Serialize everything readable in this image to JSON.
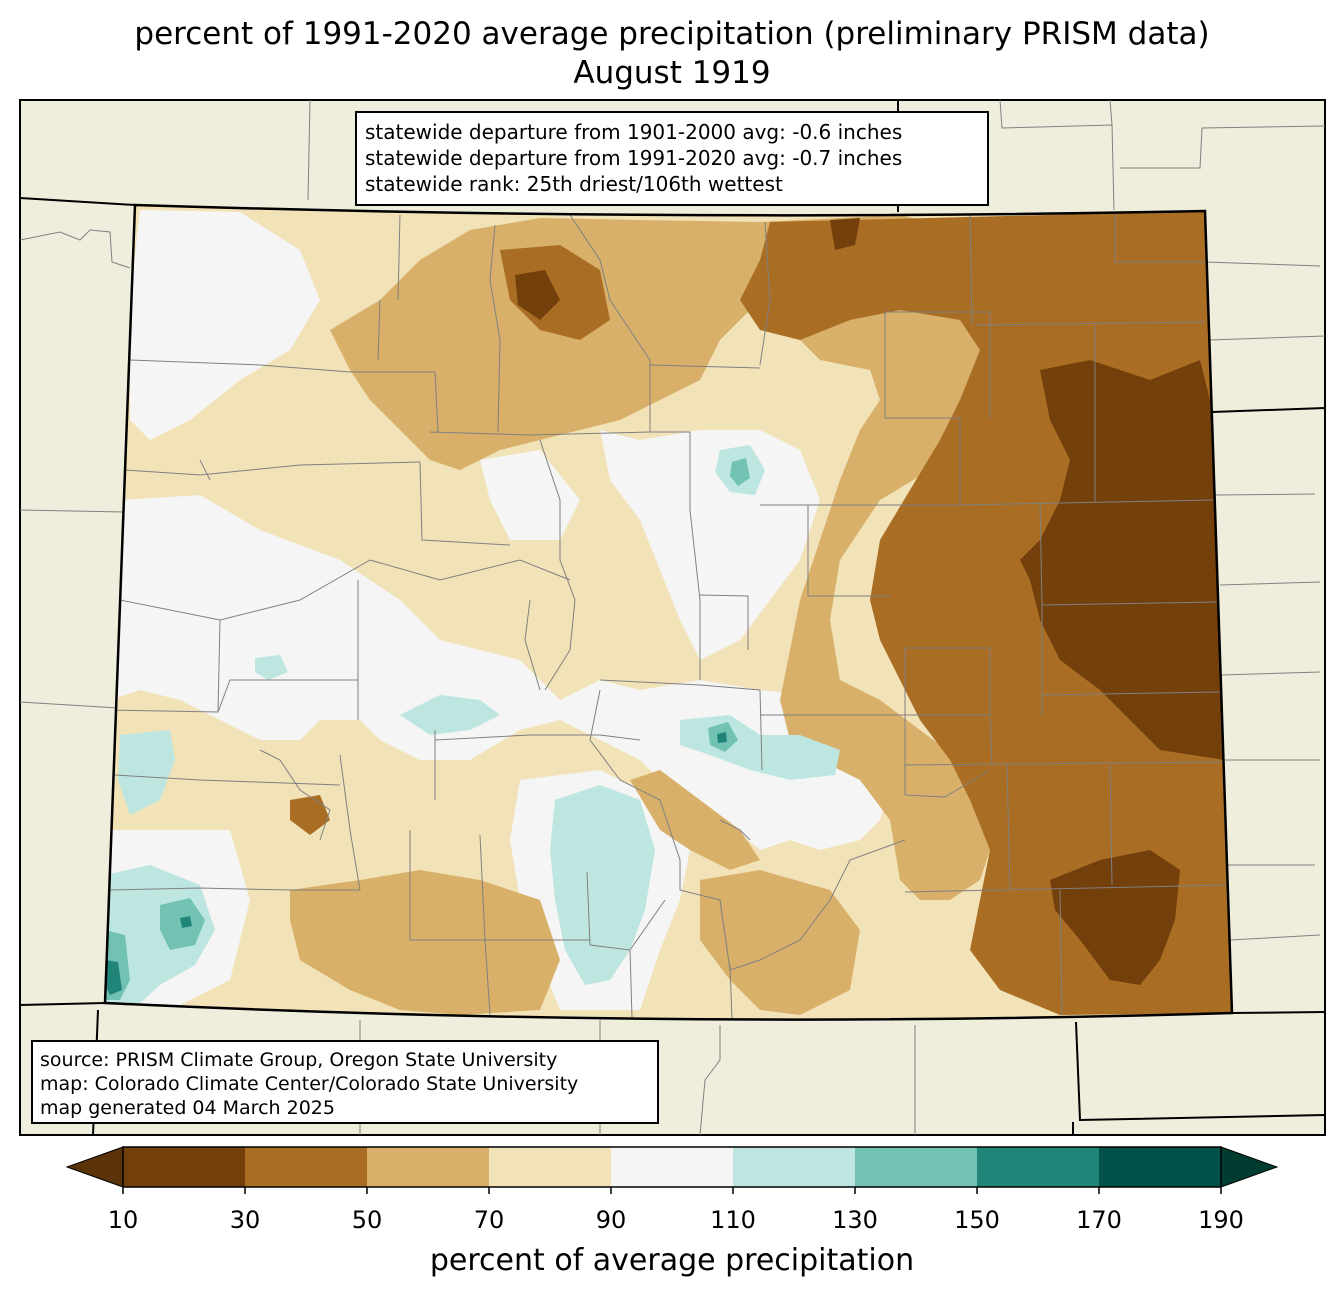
{
  "title": {
    "line1": "percent of 1991-2020 average precipitation (preliminary PRISM data)",
    "line2": "August 1919"
  },
  "stats": {
    "line1": "statewide departure from 1901-2000 avg: -0.6 inches",
    "line2": "statewide departure from 1991-2020 avg: -0.7 inches",
    "line3": "statewide rank: 25th driest/106th wettest"
  },
  "source": {
    "line1": "source: PRISM Climate Group, Oregon State University",
    "line2": "map: Colorado Climate Center/Colorado State University",
    "line3": "map generated 04 March 2025"
  },
  "colorbar": {
    "label": "percent of average precipitation",
    "ticks": [
      "10",
      "30",
      "50",
      "70",
      "90",
      "110",
      "130",
      "150",
      "170",
      "190"
    ],
    "colors": [
      "#733f0b",
      "#a96e23",
      "#d8b06a",
      "#f2e2b8",
      "#f4f5f4",
      "#bde6e0",
      "#72c2b3",
      "#208578",
      "#00524a"
    ],
    "under_color": "#5a3309",
    "over_color": "#003c30"
  },
  "colors": {
    "land": "#efeddb",
    "state_border": "#000000",
    "county_border": "#808080"
  }
}
